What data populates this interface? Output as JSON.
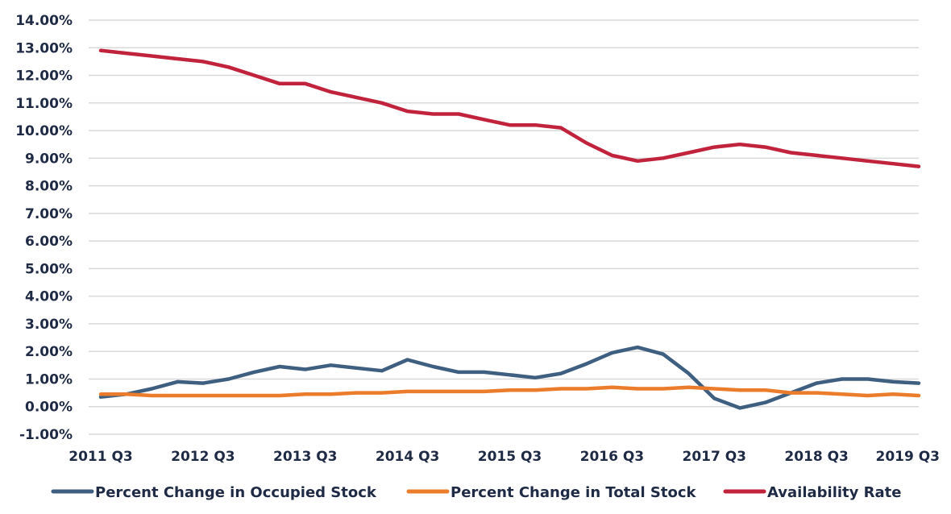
{
  "chart_data": {
    "type": "line",
    "title": "",
    "xlabel": "",
    "ylabel": "",
    "ylim": [
      -1.0,
      14.0
    ],
    "y_ticks": [
      "-1.00%",
      "0.00%",
      "1.00%",
      "2.00%",
      "3.00%",
      "4.00%",
      "5.00%",
      "6.00%",
      "7.00%",
      "8.00%",
      "9.00%",
      "10.00%",
      "11.00%",
      "12.00%",
      "13.00%",
      "14.00%"
    ],
    "x": [
      "2011 Q3",
      "2011 Q4",
      "2012 Q1",
      "2012 Q2",
      "2012 Q3",
      "2012 Q4",
      "2013 Q1",
      "2013 Q2",
      "2013 Q3",
      "2013 Q4",
      "2014 Q1",
      "2014 Q2",
      "2014 Q3",
      "2014 Q4",
      "2015 Q1",
      "2015 Q2",
      "2015 Q3",
      "2015 Q4",
      "2016 Q1",
      "2016 Q2",
      "2016 Q3",
      "2016 Q4",
      "2017 Q1",
      "2017 Q2",
      "2017 Q3",
      "2017 Q4",
      "2018 Q1",
      "2018 Q2",
      "2018 Q3",
      "2018 Q4",
      "2019 Q1",
      "2019 Q2",
      "2019 Q3"
    ],
    "x_tick_labels": [
      "2011 Q3",
      "2012 Q3",
      "2013 Q3",
      "2014 Q3",
      "2015 Q3",
      "2016 Q3",
      "2017 Q3",
      "2018 Q3",
      "2019 Q3"
    ],
    "grid": true,
    "legend_position": "bottom",
    "series": [
      {
        "name": "Percent Change in Occupied Stock",
        "color": "#3e5f80",
        "values": [
          0.35,
          0.45,
          0.65,
          0.9,
          0.85,
          1.0,
          1.25,
          1.45,
          1.35,
          1.5,
          1.4,
          1.3,
          1.7,
          1.45,
          1.25,
          1.25,
          1.15,
          1.05,
          1.2,
          1.55,
          1.95,
          2.15,
          1.9,
          1.2,
          0.3,
          -0.05,
          0.15,
          0.5,
          0.85,
          1.0,
          1.0,
          0.9,
          0.85
        ]
      },
      {
        "name": "Percent Change in Total Stock",
        "color": "#ea7c2c",
        "values": [
          0.45,
          0.45,
          0.4,
          0.4,
          0.4,
          0.4,
          0.4,
          0.4,
          0.45,
          0.45,
          0.5,
          0.5,
          0.55,
          0.55,
          0.55,
          0.55,
          0.6,
          0.6,
          0.65,
          0.65,
          0.7,
          0.65,
          0.65,
          0.7,
          0.65,
          0.6,
          0.6,
          0.5,
          0.5,
          0.45,
          0.4,
          0.45,
          0.4
        ]
      },
      {
        "name": "Availability Rate",
        "color": "#c0233b",
        "values": [
          12.9,
          12.8,
          12.7,
          12.6,
          12.5,
          12.3,
          12.0,
          11.7,
          11.7,
          11.4,
          11.2,
          11.0,
          10.7,
          10.6,
          10.6,
          10.4,
          10.2,
          10.2,
          10.1,
          9.55,
          9.1,
          8.9,
          9.0,
          9.2,
          9.4,
          9.5,
          9.4,
          9.2,
          9.1,
          9.0,
          8.9,
          8.8,
          8.7
        ]
      }
    ]
  }
}
